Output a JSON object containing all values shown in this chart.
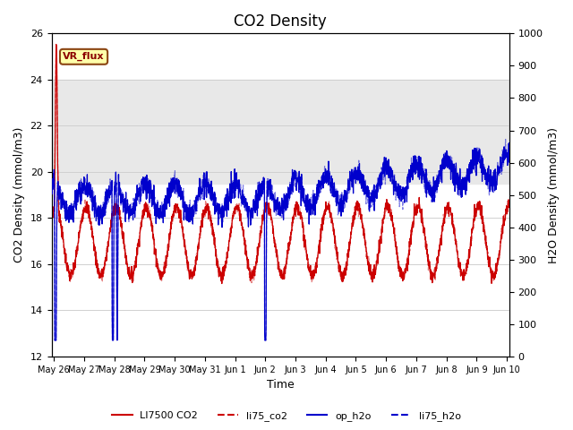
{
  "title": "CO2 Density",
  "xlabel": "Time",
  "ylabel_left": "CO2 Density (mmol/m3)",
  "ylabel_right": "H2O Density (mmol/m3)",
  "ylim_left": [
    12,
    26
  ],
  "ylim_right": [
    0,
    1000
  ],
  "yticks_left": [
    12,
    14,
    16,
    18,
    20,
    22,
    24,
    26
  ],
  "yticks_right": [
    0,
    100,
    200,
    300,
    400,
    500,
    600,
    700,
    800,
    900,
    1000
  ],
  "shade_band": [
    19.5,
    24.0
  ],
  "shade_color": "#e8e8e8",
  "annotation_text": "VR_flux",
  "legend_labels": [
    "LI7500 CO2",
    "li75_co2",
    "op_h2o",
    "li75_h2o"
  ],
  "colors": [
    "#cc0000",
    "#cc0000",
    "#0000cc",
    "#0000cc"
  ],
  "title_fontsize": 12,
  "label_fontsize": 9,
  "tick_fontsize": 8,
  "background_color": "#ffffff",
  "grid_color": "#d0d0d0",
  "x_start_day": 25.92,
  "x_end_day": 41.08,
  "xtick_positions": [
    26,
    27,
    28,
    29,
    30,
    31,
    32,
    33,
    34,
    35,
    36,
    37,
    38,
    39,
    40,
    41
  ],
  "xtick_labels": [
    "May 26",
    "May 27",
    "May 28",
    "May 29",
    "May 30",
    "May 31",
    "Jun 1",
    "Jun 2",
    "Jun 3",
    "Jun 4",
    "Jun 5",
    "Jun 6",
    "Jun 7",
    "Jun 8",
    "Jun 9",
    "Jun 10"
  ]
}
